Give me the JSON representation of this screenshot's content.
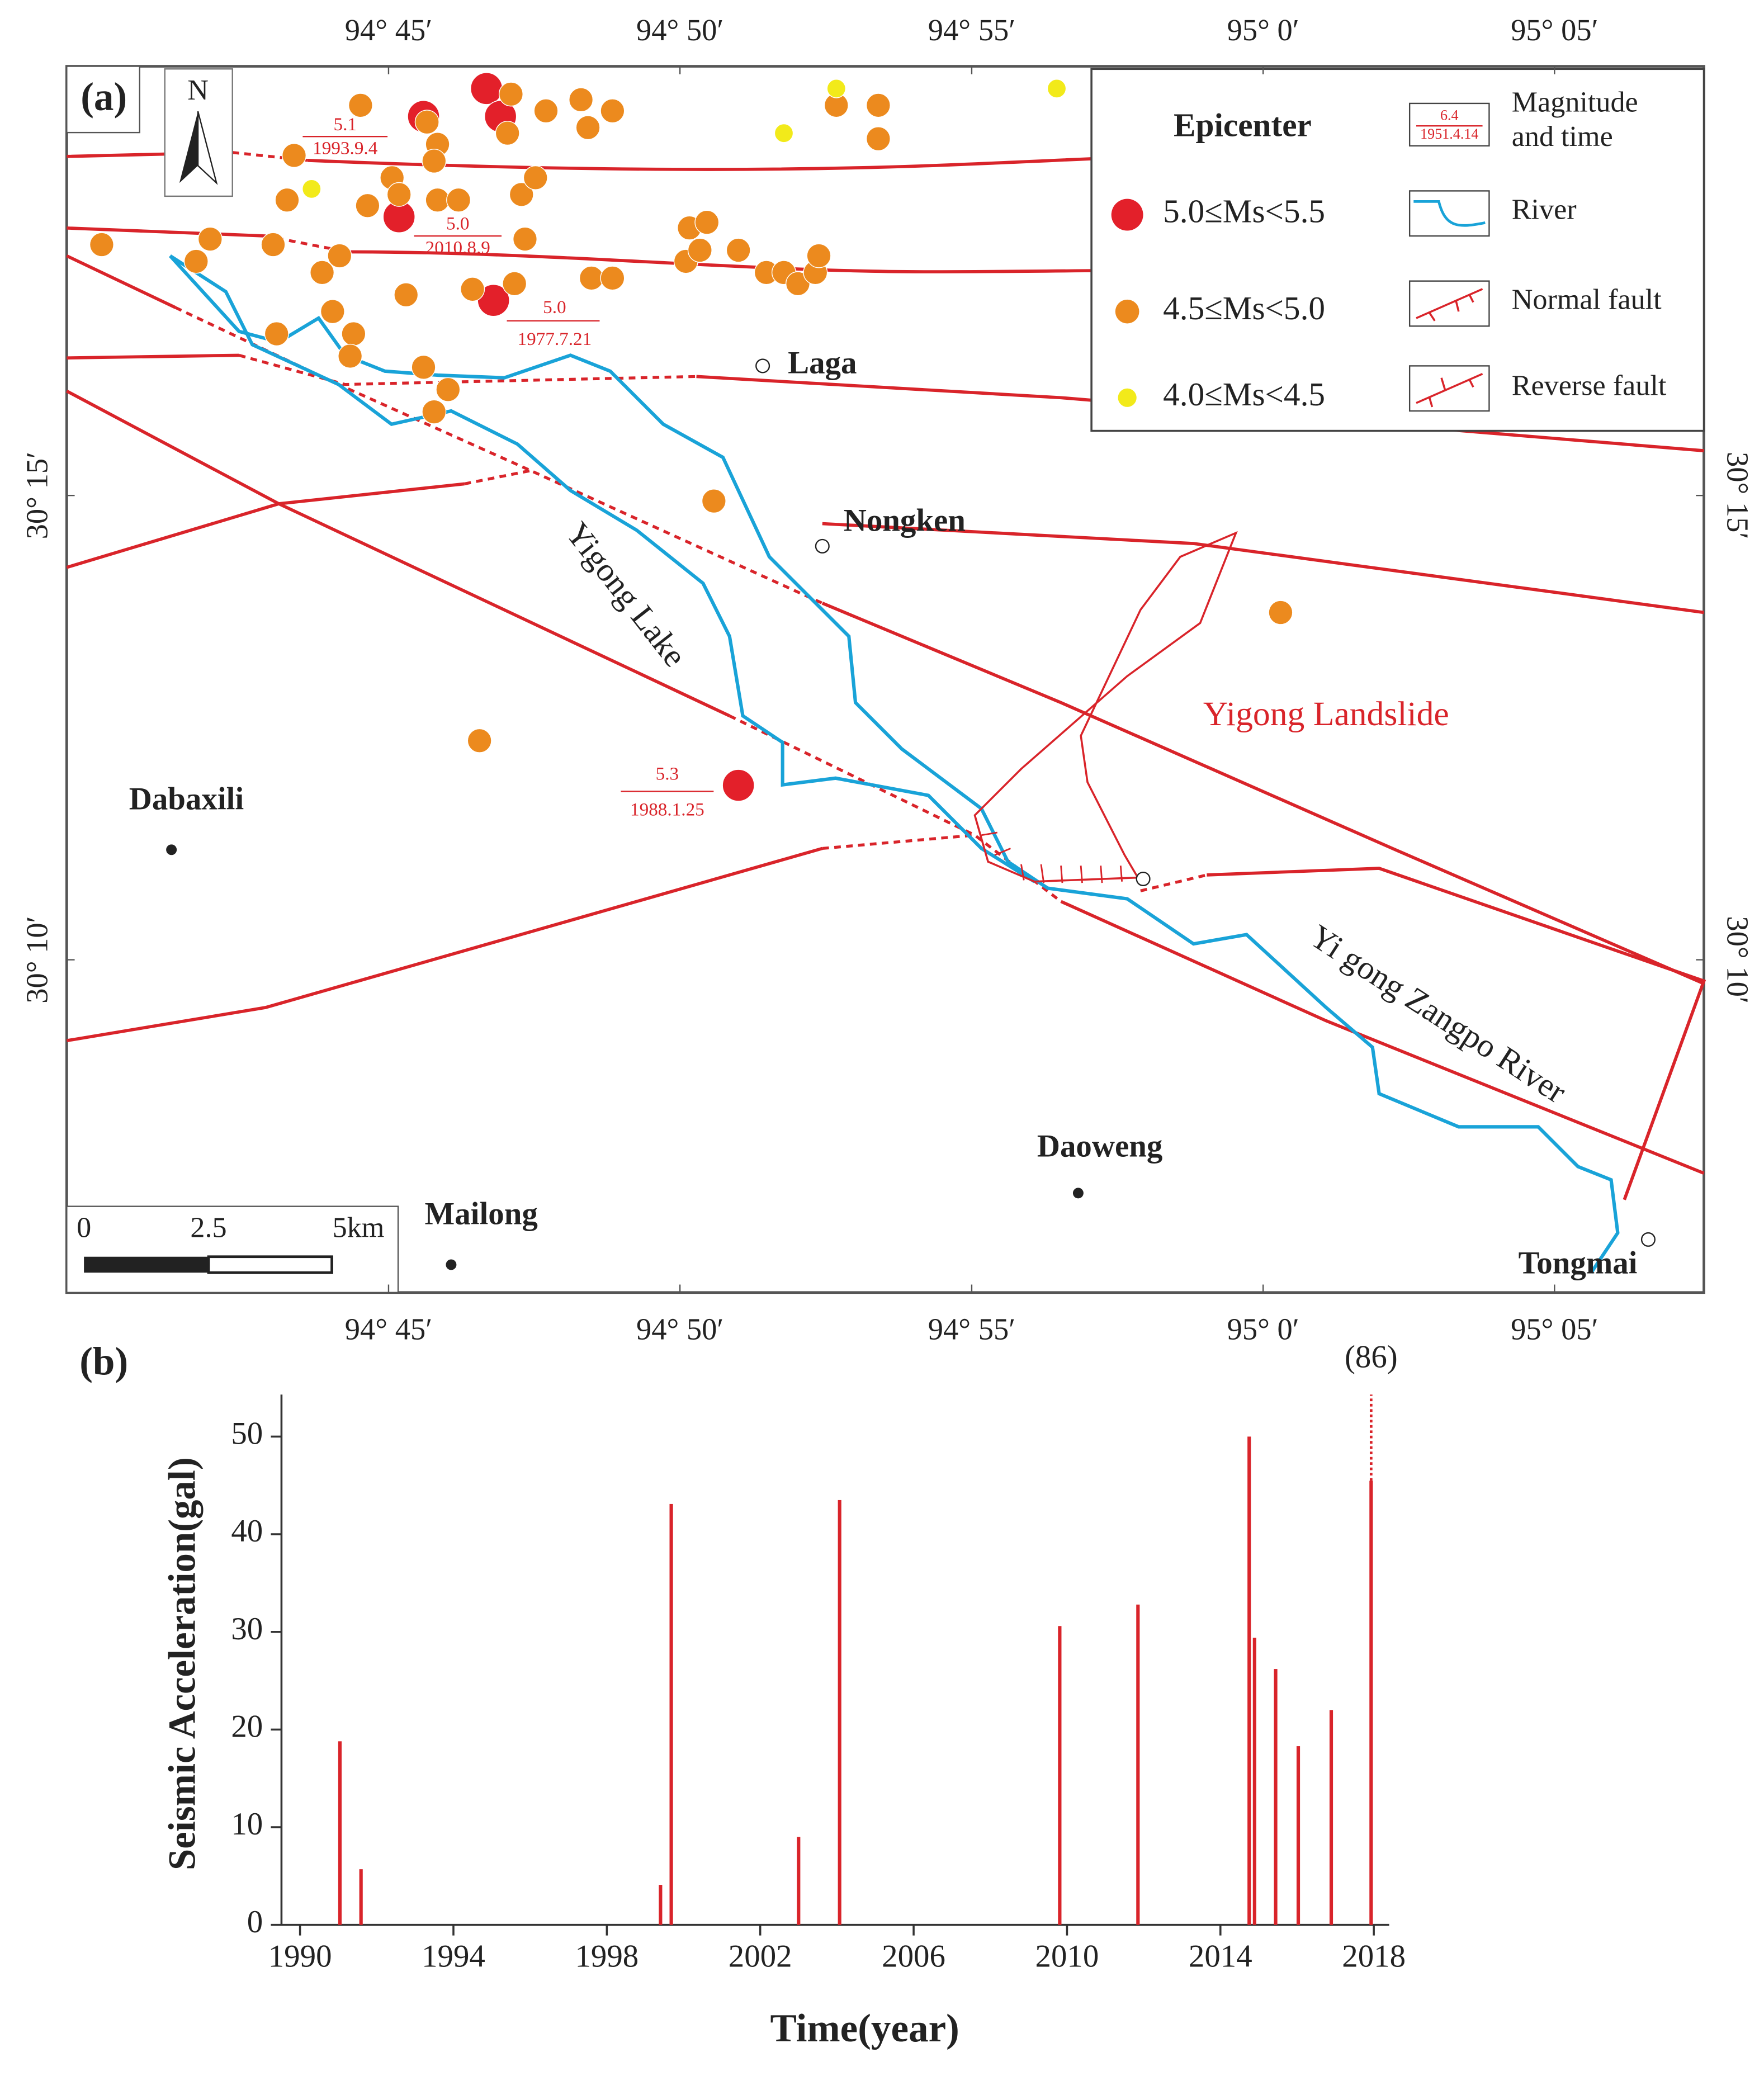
{
  "chart_data": [
    {
      "type": "scatter",
      "panel_label": "(a)",
      "north": "N",
      "legend_title": "Epicenter",
      "xlim": [
        94.658,
        95.126
      ],
      "ylim": [
        30.107,
        30.327
      ],
      "xticks": [
        {
          "value": 94.75,
          "label": "94° 45′"
        },
        {
          "value": 94.8333,
          "label": "94° 50′"
        },
        {
          "value": 94.9167,
          "label": "94° 55′"
        },
        {
          "value": 95.0,
          "label": "95° 0′"
        },
        {
          "value": 95.0833,
          "label": "95° 05′"
        }
      ],
      "yticks": [
        {
          "value": 30.25,
          "label": "30° 15′"
        },
        {
          "value": 30.1667,
          "label": "30° 10′"
        }
      ],
      "series": [
        {
          "name": "5.0≤Ms<5.5",
          "color": "#e3202a",
          "x": [
            94.76,
            94.778,
            94.782,
            94.753,
            94.78,
            94.85
          ],
          "values": [
            30.318,
            30.323,
            30.318,
            30.3,
            30.285,
            30.198
          ]
        },
        {
          "name": "4.5≤Ms<5.0",
          "color": "#ec8a1e",
          "x": [
            94.742,
            94.761,
            94.764,
            94.763,
            94.723,
            94.751,
            94.753,
            94.721,
            94.744,
            94.764,
            94.77,
            94.788,
            94.792,
            94.785,
            94.795,
            94.805,
            94.807,
            94.814,
            94.784,
            94.878,
            94.89,
            94.89,
            94.668,
            94.699,
            94.695,
            94.717,
            94.736,
            94.731,
            94.789,
            94.836,
            94.841,
            94.835,
            94.839,
            94.85,
            94.858,
            94.863,
            94.867,
            94.872,
            94.873,
            94.808,
            94.814,
            94.786,
            94.774,
            94.755,
            94.734,
            94.74,
            94.718,
            94.739,
            94.76,
            94.767,
            94.763,
            94.843,
            95.005,
            94.776
          ],
          "values": [
            30.32,
            30.317,
            30.313,
            30.31,
            30.311,
            30.307,
            30.304,
            30.303,
            30.302,
            30.303,
            30.303,
            30.304,
            30.307,
            30.322,
            30.319,
            30.321,
            30.316,
            30.319,
            30.315,
            30.32,
            30.32,
            30.314,
            30.295,
            30.296,
            30.292,
            30.295,
            30.293,
            30.29,
            30.296,
            30.298,
            30.299,
            30.292,
            30.294,
            30.294,
            30.29,
            30.29,
            30.288,
            30.29,
            30.293,
            30.289,
            30.289,
            30.288,
            30.287,
            30.286,
            30.283,
            30.279,
            30.279,
            30.275,
            30.273,
            30.269,
            30.265,
            30.249,
            30.229,
            30.206
          ]
        },
        {
          "name": "4.0≤Ms<4.5",
          "color": "#f2ea1a",
          "x": [
            94.878,
            94.941,
            94.863,
            94.728
          ],
          "values": [
            30.323,
            30.323,
            30.315,
            30.305
          ]
        }
      ],
      "annotations": [
        {
          "magnitude": "5.1",
          "date": "1993.9.4"
        },
        {
          "magnitude": "5.0",
          "date": "2010.8.9"
        },
        {
          "magnitude": "5.0",
          "date": "1977.7.21"
        },
        {
          "magnitude": "5.3",
          "date": "1988.1.25"
        }
      ],
      "places": [
        "Laga",
        "Nongken",
        "Dabaxili",
        "Mailong",
        "Daoweng",
        "Tongmai"
      ],
      "features": [
        "Yigong Lake",
        "Yigong Landslide",
        "Yi gong Zangpo River"
      ],
      "legend_sample": [
        "6.4",
        "1951.4.14"
      ],
      "legend_items": [
        "Magnitude",
        "and time",
        "River",
        "Normal fault",
        "Reverse fault"
      ],
      "scale_labels": [
        "0",
        "2.5",
        "5km"
      ]
    },
    {
      "type": "bar",
      "panel_label": "(b)",
      "xlabel": "Time(year)",
      "ylabel": "Seismic Acceleration(gal)",
      "color": "#d9242a",
      "x": [
        1991.04,
        1991.59,
        1999.4,
        1999.68,
        2003.0,
        2004.07,
        2009.81,
        2011.85,
        2014.75,
        2014.89,
        2015.44,
        2016.03,
        2016.89,
        2017.93
      ],
      "values": [
        18.8,
        5.7,
        4.1,
        43.1,
        9.0,
        43.5,
        30.6,
        32.8,
        50,
        29.4,
        26.2,
        18.3,
        22.0,
        86
      ],
      "value_labels": [
        null,
        null,
        null,
        null,
        null,
        null,
        null,
        null,
        null,
        null,
        null,
        null,
        null,
        "(86)"
      ],
      "xlim": [
        1989.5,
        2018.4
      ],
      "ylim": [
        0,
        54.3
      ],
      "xticks": [
        1990,
        1994,
        1998,
        2002,
        2006,
        2010,
        2014,
        2018
      ],
      "yticks": [
        0,
        10,
        20,
        30,
        40,
        50
      ]
    }
  ]
}
